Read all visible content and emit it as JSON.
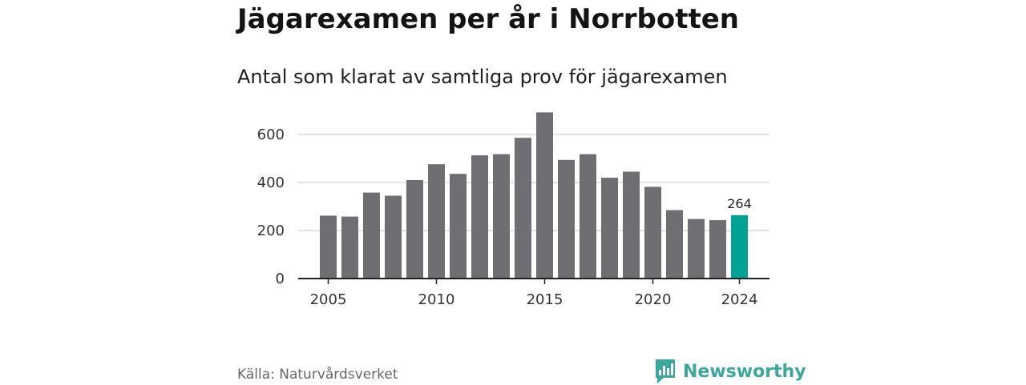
{
  "title": "Jägarexamen per år i Norrbotten",
  "subtitle": "Antal som klarat av samtliga prov för jägarexamen",
  "source": "Källa: Naturvårdsverket",
  "brand": {
    "name": "Newsworthy",
    "logo_icon": "bar-chart-speech-bubble-icon",
    "color": "#3aa89c"
  },
  "colors": {
    "bar": "#6e6e73",
    "highlight": "#00a396",
    "grid": "#d9d9d9",
    "axis": "#222222"
  },
  "chart_data": {
    "type": "bar",
    "categories": [
      "2005",
      "2006",
      "2007",
      "2008",
      "2009",
      "2010",
      "2011",
      "2012",
      "2013",
      "2014",
      "2015",
      "2016",
      "2017",
      "2018",
      "2019",
      "2020",
      "2021",
      "2022",
      "2023",
      "2024"
    ],
    "values": [
      262,
      258,
      358,
      345,
      410,
      476,
      436,
      513,
      518,
      586,
      692,
      494,
      518,
      420,
      445,
      382,
      285,
      248,
      243,
      264
    ],
    "highlight_index": 19,
    "highlight_label": "264",
    "title": "Jägarexamen per år i Norrbotten",
    "xlabel": "",
    "ylabel": "",
    "ylim": [
      0,
      700
    ],
    "yticks": [
      0,
      200,
      400,
      600
    ],
    "xticks": [
      "2005",
      "2010",
      "2015",
      "2020",
      "2024"
    ],
    "grid": true,
    "legend": "none"
  }
}
